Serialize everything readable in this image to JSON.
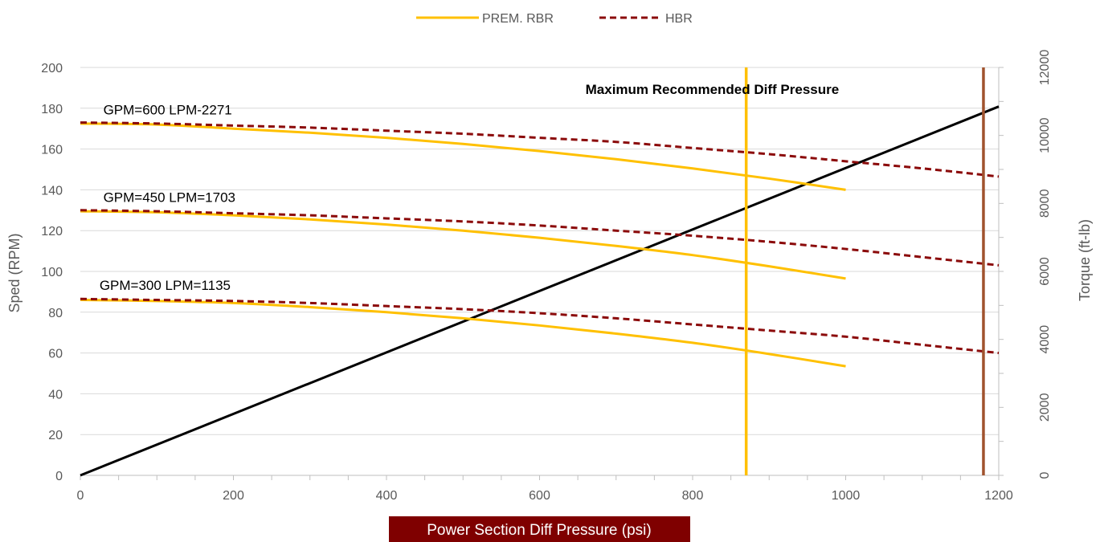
{
  "chart_data": {
    "type": "line",
    "xlabel": "Power Section Diff Pressure (psi)",
    "ylabel": "Sped (RPM)",
    "y2label": "Torque (ft-lb)",
    "xlim": [
      0,
      1200
    ],
    "ylim": [
      0,
      200
    ],
    "y2lim": [
      0,
      12000
    ],
    "x_ticks": [
      0,
      200,
      400,
      600,
      800,
      1000,
      1200
    ],
    "y_ticks": [
      0,
      20,
      40,
      60,
      80,
      100,
      120,
      140,
      160,
      180,
      200
    ],
    "y2_ticks": [
      0,
      2000,
      4000,
      6000,
      8000,
      10000,
      12000
    ],
    "grid": true,
    "legend_position": "top-center",
    "legend": [
      {
        "name": "PREM. RBR",
        "color": "#FFC000",
        "style": "solid"
      },
      {
        "name": "HBR",
        "color": "#8B0A0A",
        "style": "dashed"
      }
    ],
    "series": [
      {
        "group": "PREM. RBR",
        "label": "GPM=600 LPM-2271",
        "color": "#FFC000",
        "style": "solid",
        "x": [
          0,
          100,
          200,
          300,
          400,
          500,
          600,
          700,
          800,
          900,
          1000
        ],
        "y": [
          172.5,
          172,
          170,
          168,
          165.5,
          162.5,
          159,
          155,
          150.5,
          145.5,
          140
        ]
      },
      {
        "group": "HBR",
        "label": "GPM=600 LPM-2271",
        "color": "#8B0A0A",
        "style": "dashed",
        "x": [
          0,
          100,
          200,
          300,
          400,
          500,
          600,
          700,
          800,
          900,
          1000,
          1100,
          1200
        ],
        "y": [
          173,
          172.5,
          171.5,
          170.5,
          169,
          167.5,
          165.5,
          163.5,
          160.5,
          157.5,
          154,
          150.5,
          146.5
        ]
      },
      {
        "group": "PREM. RBR",
        "label": "GPM=450 LPM=1703",
        "color": "#FFC000",
        "style": "solid",
        "x": [
          0,
          100,
          200,
          300,
          400,
          500,
          600,
          700,
          800,
          900,
          1000
        ],
        "y": [
          129.5,
          129,
          127.5,
          125.5,
          123,
          120,
          116.5,
          112.5,
          108,
          102.5,
          96.5
        ]
      },
      {
        "group": "HBR",
        "label": "GPM=450 LPM=1703",
        "color": "#8B0A0A",
        "style": "dashed",
        "x": [
          0,
          100,
          200,
          300,
          400,
          500,
          600,
          700,
          800,
          900,
          1000,
          1100,
          1200
        ],
        "y": [
          130,
          129.5,
          128.5,
          127.5,
          126,
          124.5,
          122.5,
          120,
          117.5,
          114.5,
          111,
          107,
          103
        ]
      },
      {
        "group": "PREM. RBR",
        "label": "GPM=300 LPM=1135",
        "color": "#FFC000",
        "style": "solid",
        "x": [
          0,
          100,
          200,
          300,
          400,
          500,
          600,
          700,
          800,
          900,
          1000
        ],
        "y": [
          86,
          85.5,
          84.5,
          82.5,
          80,
          77,
          73.5,
          69.5,
          65,
          59.5,
          53.5
        ]
      },
      {
        "group": "HBR",
        "label": "GPM=300 LPM=1135",
        "color": "#8B0A0A",
        "style": "dashed",
        "x": [
          0,
          100,
          200,
          300,
          400,
          500,
          600,
          700,
          800,
          900,
          1000,
          1100,
          1200
        ],
        "y": [
          86.5,
          86,
          85.5,
          84.5,
          83,
          81.5,
          79.5,
          77,
          74,
          71,
          68,
          64,
          60
        ]
      }
    ],
    "torque_line": {
      "axis": "y2",
      "color": "#000000",
      "x": [
        0,
        1200
      ],
      "y": [
        0,
        10850
      ]
    },
    "vertical_lines": [
      {
        "x": 870,
        "color": "#FFC000"
      },
      {
        "x": 1180,
        "color": "#A0522D"
      }
    ],
    "annotations": [
      {
        "text": "GPM=600 LPM-2271",
        "x": 30,
        "y": 177
      },
      {
        "text": "GPM=450 LPM=1703",
        "x": 30,
        "y": 134
      },
      {
        "text": "GPM=300 LPM=1135",
        "x": 25,
        "y": 91
      },
      {
        "text": "Maximum Recommended Diff Pressure",
        "x": 660,
        "y": 187,
        "bold": true
      }
    ]
  }
}
